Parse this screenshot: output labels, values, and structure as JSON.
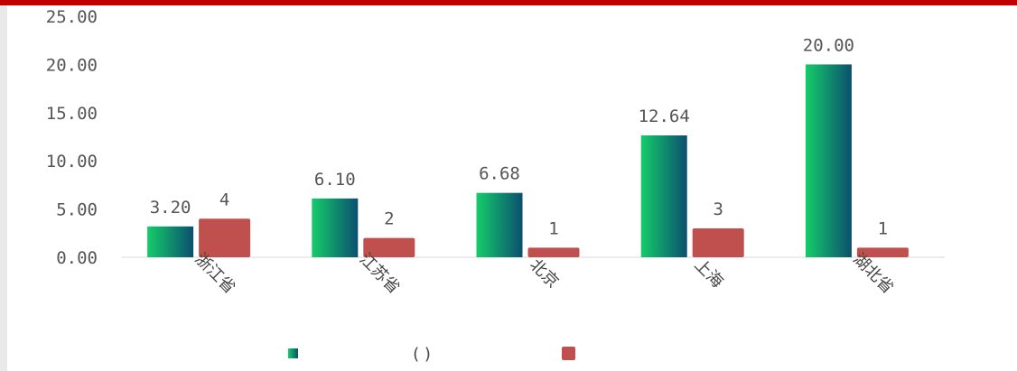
{
  "colors": {
    "accent": "#c00000",
    "series1_start": "#15cc6a",
    "series1_end": "#0b4f6e",
    "series2": "#c0504d"
  },
  "chart_data": {
    "type": "bar",
    "title": "",
    "xlabel": "",
    "ylabel": "",
    "categories": [
      "浙江省",
      "江苏省",
      "北京",
      "上海",
      "湖北省"
    ],
    "ylim": [
      0,
      25
    ],
    "yticks": [
      "0.00",
      "5.00",
      "10.00",
      "15.00",
      "20.00",
      "25.00"
    ],
    "grid": false,
    "legend_position": "bottom",
    "series": [
      {
        "values": [
          3.2,
          6.1,
          6.68,
          12.64,
          20.0
        ],
        "labels": [
          "3.20",
          "6.10",
          "6.68",
          "12.64",
          "20.00"
        ]
      },
      {
        "values": [
          4,
          2,
          1,
          3,
          1
        ],
        "labels": [
          "4",
          "2",
          "1",
          "3",
          "1"
        ]
      }
    ],
    "legend": [
      {
        "text": "(      )"
      },
      {
        "text": ""
      }
    ]
  }
}
